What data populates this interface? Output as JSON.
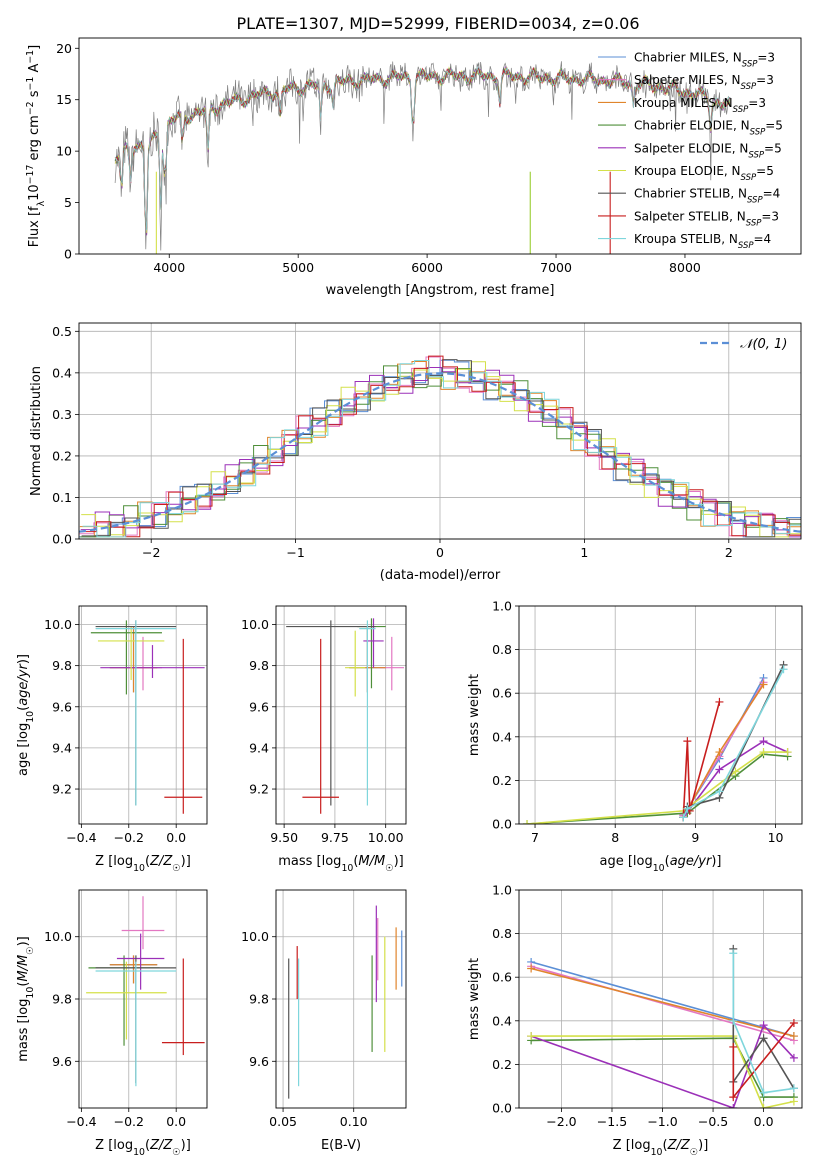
{
  "figure_title": "PLATE=1307, MJD=52999, FIBERID=0034, z=0.06",
  "colors": {
    "Chabrier MILES": "#5b8fd6",
    "Salpeter MILES": "#e377c2",
    "Kroupa MILES": "#e0852c",
    "Chabrier ELODIE": "#4f8f3a",
    "Salpeter ELODIE": "#9b30b8",
    "Kroupa ELODIE": "#d4e04a",
    "Chabrier STELIB": "#555555",
    "Salpeter STELIB": "#c81e1e",
    "Kroupa STELIB": "#7fd6dc",
    "normal_curve": "#5b8fd6"
  },
  "chart_data": [
    {
      "id": "spectrum",
      "type": "line",
      "xlabel": "wavelength [Angstrom, rest frame]",
      "ylabel": "Flux [f_λ 10^-17 erg cm^-2 s^-1 A^-1]",
      "xlim": [
        3300,
        8900
      ],
      "ylim": [
        0,
        21
      ],
      "xticks": [
        4000,
        5000,
        6000,
        7000,
        8000
      ],
      "yticks": [
        0,
        5,
        10,
        15,
        20
      ],
      "grid": false,
      "legend_position": "right",
      "legend": [
        {
          "name": "Chabrier MILES",
          "nssp": "3"
        },
        {
          "name": "Salpeter MILES",
          "nssp": "3"
        },
        {
          "name": "Kroupa MILES",
          "nssp": "3"
        },
        {
          "name": "Chabrier ELODIE",
          "nssp": "5"
        },
        {
          "name": "Salpeter ELODIE",
          "nssp": "5"
        },
        {
          "name": "Kroupa ELODIE",
          "nssp": "5"
        },
        {
          "name": "Chabrier STELIB",
          "nssp": "4"
        },
        {
          "name": "Salpeter STELIB",
          "nssp": "3"
        },
        {
          "name": "Kroupa STELIB",
          "nssp": "4"
        }
      ],
      "data_range": [
        3580,
        8350
      ],
      "continuum": [
        [
          3580,
          9.2
        ],
        [
          3700,
          10.5
        ],
        [
          3850,
          10.6
        ],
        [
          3950,
          12.5
        ],
        [
          4050,
          13.2
        ],
        [
          4200,
          13.6
        ],
        [
          4400,
          14.5
        ],
        [
          4700,
          15.5
        ],
        [
          5000,
          16.2
        ],
        [
          5400,
          16.8
        ],
        [
          5800,
          17.2
        ],
        [
          6200,
          17.3
        ],
        [
          6600,
          17.3
        ],
        [
          7000,
          17.1
        ],
        [
          7400,
          16.9
        ],
        [
          7800,
          16.3
        ],
        [
          8100,
          15.5
        ],
        [
          8350,
          14.3
        ]
      ],
      "absorption_features": [
        [
          3630,
          4.0
        ],
        [
          3700,
          3.0
        ],
        [
          3820,
          10.2
        ],
        [
          3934,
          7.0
        ],
        [
          3968,
          6.0
        ],
        [
          4102,
          3.0
        ],
        [
          4300,
          4.5
        ],
        [
          4861,
          2.5
        ],
        [
          5175,
          3.5
        ],
        [
          5270,
          2.0
        ],
        [
          5890,
          5.0
        ],
        [
          6563,
          2.5
        ],
        [
          7600,
          2.0
        ],
        [
          8200,
          2.5
        ]
      ]
    },
    {
      "id": "residuals",
      "type": "line",
      "xlabel": "(data-model)/error",
      "ylabel": "Normed distribution",
      "xlim": [
        -2.5,
        2.5
      ],
      "ylim": [
        0,
        0.52
      ],
      "xticks": [
        -2,
        -1,
        0,
        1,
        2
      ],
      "yticks": [
        0.0,
        0.1,
        0.2,
        0.3,
        0.4,
        0.5
      ],
      "grid": true,
      "legend_position": "top-right",
      "legend_label": "𝒩(0, 1)",
      "bin_width": 0.1
    },
    {
      "id": "age_vs_Z",
      "type": "scatter",
      "xlabel": "Z [log10(Z/Z☉)]",
      "ylabel": "age [log10(age/yr)]",
      "xlim": [
        -0.41,
        0.13
      ],
      "ylim": [
        9.03,
        10.09
      ],
      "xticks": [
        -0.4,
        -0.2,
        0.0
      ],
      "yticks": [
        9.2,
        9.4,
        9.6,
        9.8,
        10.0
      ],
      "grid": true,
      "points": [
        {
          "model": "Chabrier MILES",
          "x": -0.18,
          "y": 9.79,
          "xerr": 0.1,
          "yerr_lo": 0.12,
          "yerr_hi": 0.2
        },
        {
          "model": "Salpeter MILES",
          "x": -0.14,
          "y": 9.79,
          "xerr": 0.08,
          "yerr_lo": 0.11,
          "yerr_hi": 0.15
        },
        {
          "model": "Kroupa MILES",
          "x": -0.18,
          "y": 9.79,
          "xerr": 0.1,
          "yerr_lo": 0.12,
          "yerr_hi": 0.2
        },
        {
          "model": "Chabrier ELODIE",
          "x": -0.21,
          "y": 9.96,
          "xerr": 0.15,
          "yerr_lo": 0.3,
          "yerr_hi": 0.06
        },
        {
          "model": "Salpeter ELODIE",
          "x": -0.1,
          "y": 9.79,
          "xerr": 0.22,
          "yerr_lo": 0.05,
          "yerr_hi": 0.11
        },
        {
          "model": "Kroupa ELODIE",
          "x": -0.19,
          "y": 9.92,
          "xerr": 0.14,
          "yerr_lo": 0.19,
          "yerr_hi": 0.07
        },
        {
          "model": "Chabrier STELIB",
          "x": -0.17,
          "y": 9.99,
          "xerr": 0.17,
          "yerr_lo": 0.87,
          "yerr_hi": 0.03
        },
        {
          "model": "Salpeter STELIB",
          "x": 0.03,
          "y": 9.16,
          "xerr": 0.08,
          "yerr_lo": 0.08,
          "yerr_hi": 0.77
        },
        {
          "model": "Kroupa STELIB",
          "x": -0.17,
          "y": 9.98,
          "xerr": 0.17,
          "yerr_lo": 0.86,
          "yerr_hi": 0.04
        }
      ]
    },
    {
      "id": "age_vs_mass",
      "type": "scatter",
      "xlabel": "mass [log10(M/M☉)]",
      "ylabel": "",
      "xlim": [
        9.46,
        10.1
      ],
      "ylim": [
        9.03,
        10.09
      ],
      "xticks": [
        9.5,
        9.75,
        10.0
      ],
      "yticks": [
        9.2,
        9.4,
        9.6,
        9.8,
        10.0
      ],
      "grid": true,
      "points": [
        {
          "model": "Chabrier MILES",
          "x": 9.91,
          "y": 9.79,
          "xerr": 0.09,
          "yerr_lo": 0.12,
          "yerr_hi": 0.2
        },
        {
          "model": "Salpeter MILES",
          "x": 10.03,
          "y": 9.79,
          "xerr": 0.06,
          "yerr_lo": 0.11,
          "yerr_hi": 0.15
        },
        {
          "model": "Kroupa MILES",
          "x": 9.91,
          "y": 9.79,
          "xerr": 0.09,
          "yerr_lo": 0.12,
          "yerr_hi": 0.2
        },
        {
          "model": "Chabrier ELODIE",
          "x": 9.93,
          "y": 9.99,
          "xerr": 0.07,
          "yerr_lo": 0.3,
          "yerr_hi": 0.04
        },
        {
          "model": "Salpeter ELODIE",
          "x": 9.94,
          "y": 9.92,
          "xerr": 0.05,
          "yerr_lo": 0.13,
          "yerr_hi": 0.11
        },
        {
          "model": "Kroupa ELODIE",
          "x": 9.85,
          "y": 9.79,
          "xerr": 0.05,
          "yerr_lo": 0.14,
          "yerr_hi": 0.18
        },
        {
          "model": "Chabrier STELIB",
          "x": 9.73,
          "y": 9.99,
          "xerr": 0.22,
          "yerr_lo": 0.87,
          "yerr_hi": 0.03
        },
        {
          "model": "Salpeter STELIB",
          "x": 9.68,
          "y": 9.16,
          "xerr": 0.09,
          "yerr_lo": 0.08,
          "yerr_hi": 0.77
        },
        {
          "model": "Kroupa STELIB",
          "x": 9.91,
          "y": 9.98,
          "xerr": 0.04,
          "yerr_lo": 0.86,
          "yerr_hi": 0.04
        }
      ]
    },
    {
      "id": "mass_weight_vs_age",
      "type": "line",
      "xlabel": "age [log10(age/yr)]",
      "ylabel": "mass weight",
      "xlim": [
        6.8,
        10.33
      ],
      "ylim": [
        0,
        1.0
      ],
      "xticks": [
        7,
        8,
        9,
        10
      ],
      "yticks": [
        0.0,
        0.2,
        0.4,
        0.6,
        0.8,
        1.0
      ],
      "grid": true,
      "series": [
        {
          "model": "Chabrier MILES",
          "x": [
            8.85,
            9.3,
            9.85
          ],
          "y": [
            0.04,
            0.3,
            0.67
          ]
        },
        {
          "model": "Salpeter MILES",
          "x": [
            8.85,
            9.3,
            9.85
          ],
          "y": [
            0.04,
            0.31,
            0.65
          ]
        },
        {
          "model": "Kroupa MILES",
          "x": [
            8.85,
            9.3,
            9.85
          ],
          "y": [
            0.03,
            0.33,
            0.64
          ]
        },
        {
          "model": "Chabrier ELODIE",
          "x": [
            6.9,
            8.9,
            9.5,
            9.85,
            10.15
          ],
          "y": [
            0.0,
            0.05,
            0.22,
            0.32,
            0.31
          ]
        },
        {
          "model": "Salpeter ELODIE",
          "x": [
            8.85,
            9.3,
            9.85,
            10.15
          ],
          "y": [
            0.03,
            0.25,
            0.38,
            0.33
          ]
        },
        {
          "model": "Kroupa ELODIE",
          "x": [
            6.9,
            8.85,
            9.5,
            9.85,
            10.15
          ],
          "y": [
            0.0,
            0.06,
            0.24,
            0.33,
            0.33
          ]
        },
        {
          "model": "Chabrier STELIB",
          "x": [
            8.85,
            8.9,
            9.3,
            10.1
          ],
          "y": [
            0.03,
            0.08,
            0.12,
            0.73
          ]
        },
        {
          "model": "Salpeter STELIB",
          "x": [
            8.85,
            8.9,
            8.93,
            9.3
          ],
          "y": [
            0.03,
            0.38,
            0.06,
            0.56
          ]
        },
        {
          "model": "Kroupa STELIB",
          "x": [
            8.85,
            8.9,
            9.3,
            10.1
          ],
          "y": [
            0.03,
            0.07,
            0.15,
            0.71
          ]
        }
      ]
    },
    {
      "id": "mass_vs_Z",
      "type": "scatter",
      "xlabel": "Z [log10(Z/Z☉)]",
      "ylabel": "mass [log10(M/M☉)]",
      "xlim": [
        -0.41,
        0.13
      ],
      "ylim": [
        9.45,
        10.15
      ],
      "xticks": [
        -0.4,
        -0.2,
        0.0
      ],
      "yticks": [
        9.6,
        9.8,
        10.0
      ],
      "grid": true,
      "points": [
        {
          "model": "Chabrier MILES",
          "x": -0.18,
          "y": 9.91,
          "xerr": 0.1,
          "yerr_lo": 0.06,
          "yerr_hi": 0.03
        },
        {
          "model": "Salpeter MILES",
          "x": -0.14,
          "y": 10.02,
          "xerr": 0.09,
          "yerr_lo": 0.06,
          "yerr_hi": 0.11
        },
        {
          "model": "Kroupa MILES",
          "x": -0.18,
          "y": 9.91,
          "xerr": 0.1,
          "yerr_lo": 0.06,
          "yerr_hi": 0.03
        },
        {
          "model": "Chabrier ELODIE",
          "x": -0.22,
          "y": 9.9,
          "xerr": 0.15,
          "yerr_lo": 0.25,
          "yerr_hi": 0.04
        },
        {
          "model": "Salpeter ELODIE",
          "x": -0.15,
          "y": 9.93,
          "xerr": 0.1,
          "yerr_lo": 0.1,
          "yerr_hi": 0.08
        },
        {
          "model": "Kroupa ELODIE",
          "x": -0.21,
          "y": 9.82,
          "xerr": 0.17,
          "yerr_lo": 0.15,
          "yerr_hi": 0.1
        },
        {
          "model": "Chabrier STELIB",
          "x": -0.17,
          "y": 9.9,
          "xerr": 0.17,
          "yerr_lo": 0.37,
          "yerr_hi": 0.04
        },
        {
          "model": "Salpeter STELIB",
          "x": 0.03,
          "y": 9.66,
          "xerr": 0.09,
          "yerr_lo": 0.04,
          "yerr_hi": 0.27
        },
        {
          "model": "Kroupa STELIB",
          "x": -0.17,
          "y": 9.89,
          "xerr": 0.17,
          "yerr_lo": 0.37,
          "yerr_hi": 0.03
        }
      ]
    },
    {
      "id": "mass_vs_ebv",
      "type": "scatter",
      "xlabel": "E(B-V)",
      "ylabel": "",
      "xlim": [
        0.045,
        0.137
      ],
      "ylim": [
        9.45,
        10.15
      ],
      "xticks": [
        0.05,
        0.1
      ],
      "xtick_labels": [
        "0.05",
        "0.10"
      ],
      "yticks": [
        9.6,
        9.8,
        10.0
      ],
      "grid": true,
      "points": [
        {
          "model": "Chabrier MILES",
          "x": 0.134,
          "y": 9.93,
          "yerr_lo": 0.09,
          "yerr_hi": 0.09
        },
        {
          "model": "Salpeter MILES",
          "x": 0.117,
          "y": 9.98,
          "yerr_lo": 0.12,
          "yerr_hi": 0.08
        },
        {
          "model": "Kroupa MILES",
          "x": 0.13,
          "y": 9.92,
          "yerr_lo": 0.09,
          "yerr_hi": 0.11
        },
        {
          "model": "Chabrier ELODIE",
          "x": 0.113,
          "y": 9.81,
          "yerr_lo": 0.18,
          "yerr_hi": 0.13
        },
        {
          "model": "Salpeter ELODIE",
          "x": 0.116,
          "y": 9.95,
          "yerr_lo": 0.16,
          "yerr_hi": 0.15
        },
        {
          "model": "Kroupa ELODIE",
          "x": 0.122,
          "y": 9.85,
          "yerr_lo": 0.22,
          "yerr_hi": 0.15
        },
        {
          "model": "Chabrier STELIB",
          "x": 0.054,
          "y": 9.7,
          "yerr_lo": 0.22,
          "yerr_hi": 0.23
        },
        {
          "model": "Salpeter STELIB",
          "x": 0.06,
          "y": 9.92,
          "yerr_lo": 0.12,
          "yerr_hi": 0.05
        },
        {
          "model": "Kroupa STELIB",
          "x": 0.061,
          "y": 9.72,
          "yerr_lo": 0.2,
          "yerr_hi": 0.21
        }
      ]
    },
    {
      "id": "mass_weight_vs_Z",
      "type": "line",
      "xlabel": "Z [log10(Z/Z☉)]",
      "ylabel": "mass weight",
      "xlim": [
        -2.42,
        0.38
      ],
      "ylim": [
        0,
        1.0
      ],
      "xticks": [
        -2.0,
        -1.5,
        -1.0,
        -0.5,
        0.0
      ],
      "yticks": [
        0.0,
        0.2,
        0.4,
        0.6,
        0.8,
        1.0
      ],
      "grid": true,
      "series": [
        {
          "model": "Chabrier MILES",
          "x": [
            -2.3,
            0.3
          ],
          "y": [
            0.67,
            0.33
          ]
        },
        {
          "model": "Salpeter MILES",
          "x": [
            -2.3,
            0.3
          ],
          "y": [
            0.65,
            0.31
          ]
        },
        {
          "model": "Kroupa MILES",
          "x": [
            -2.3,
            0.3
          ],
          "y": [
            0.64,
            0.33
          ]
        },
        {
          "model": "Chabrier ELODIE",
          "x": [
            -2.3,
            -0.3,
            0.0,
            0.3
          ],
          "y": [
            0.31,
            0.32,
            0.05,
            0.05
          ]
        },
        {
          "model": "Salpeter ELODIE",
          "x": [
            -2.3,
            -0.3,
            0.0,
            0.3
          ],
          "y": [
            0.33,
            0.0,
            0.38,
            0.23
          ]
        },
        {
          "model": "Kroupa ELODIE",
          "x": [
            -2.3,
            -0.3,
            0.0,
            0.3
          ],
          "y": [
            0.33,
            0.33,
            0.0,
            0.03
          ]
        },
        {
          "model": "Chabrier STELIB",
          "x": [
            -0.3,
            -0.3,
            0.0,
            0.3
          ],
          "y": [
            0.73,
            0.12,
            0.32,
            0.09
          ]
        },
        {
          "model": "Salpeter STELIB",
          "x": [
            -0.3,
            -0.3,
            0.3
          ],
          "y": [
            0.28,
            0.05,
            0.39
          ]
        },
        {
          "model": "Kroupa STELIB",
          "x": [
            -0.3,
            -0.3,
            0.0,
            0.3
          ],
          "y": [
            0.71,
            0.4,
            0.07,
            0.09
          ]
        }
      ]
    }
  ]
}
